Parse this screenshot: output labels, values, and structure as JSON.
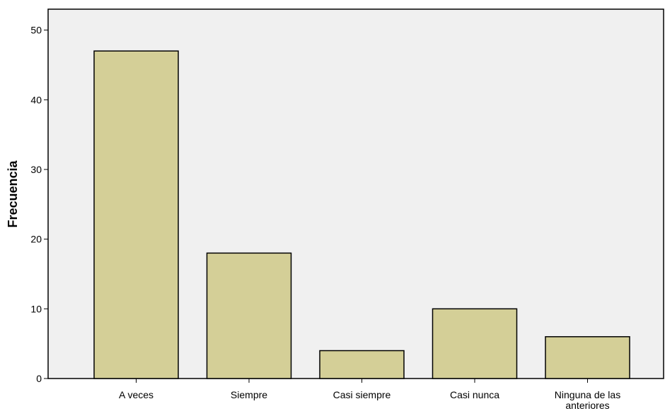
{
  "chart_data": {
    "type": "bar",
    "title": "",
    "xlabel": "",
    "ylabel": "Frecuencia",
    "categories": [
      "A veces",
      "Siempre",
      "Casi siempre",
      "Casi nunca",
      "Ninguna de las anteriores"
    ],
    "category_label_lines": [
      [
        "A veces"
      ],
      [
        "Siempre"
      ],
      [
        "Casi siempre"
      ],
      [
        "Casi nunca"
      ],
      [
        "Ninguna de las",
        "anteriores"
      ]
    ],
    "values": [
      47,
      18,
      4,
      10,
      6
    ],
    "ylim": [
      0,
      53
    ],
    "yticks": [
      0,
      10,
      20,
      30,
      40,
      50
    ],
    "grid": false,
    "legend": "none",
    "colors": {
      "bar_fill": "#d4cf97",
      "bar_stroke": "#000000",
      "plot_background": "#f0f0f0"
    }
  }
}
